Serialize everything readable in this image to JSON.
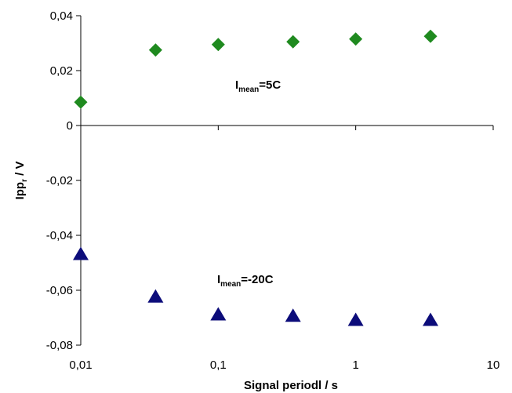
{
  "chart_data": {
    "type": "scatter",
    "title": "",
    "xlabel": "Signal periodl / s",
    "ylabel_main": "Ipp",
    "ylabel_sub": "r",
    "ylabel_rest": " / V",
    "xscale": "log",
    "xlim": [
      0.01,
      10
    ],
    "ylim": [
      -0.08,
      0.04
    ],
    "xticks": [
      0.01,
      0.1,
      1,
      10
    ],
    "xtick_labels": [
      "0,01",
      "0,1",
      "1",
      "10"
    ],
    "yticks": [
      0.04,
      0.02,
      0,
      -0.02,
      -0.04,
      -0.06,
      -0.08
    ],
    "ytick_labels": [
      "0,04",
      "0,02",
      "0",
      "-0,02",
      "-0,04",
      "-0,06",
      "-0,08"
    ],
    "grid": false,
    "series": [
      {
        "marker": "diamond",
        "color": "#1f8a1f",
        "x": [
          0.01,
          0.035,
          0.1,
          0.35,
          1,
          3.5
        ],
        "y": [
          0.0085,
          0.0275,
          0.0295,
          0.0305,
          0.0315,
          0.0325
        ],
        "annotation": {
          "main": "I",
          "sub": "mean",
          "rest": "=5C"
        }
      },
      {
        "marker": "triangle",
        "color": "#0c0c7a",
        "x": [
          0.01,
          0.035,
          0.1,
          0.35,
          1,
          3.5
        ],
        "y": [
          -0.047,
          -0.0625,
          -0.069,
          -0.0695,
          -0.071,
          -0.071
        ],
        "annotation": {
          "main": "I",
          "sub": "mean",
          "rest": "=-20C"
        }
      }
    ]
  }
}
